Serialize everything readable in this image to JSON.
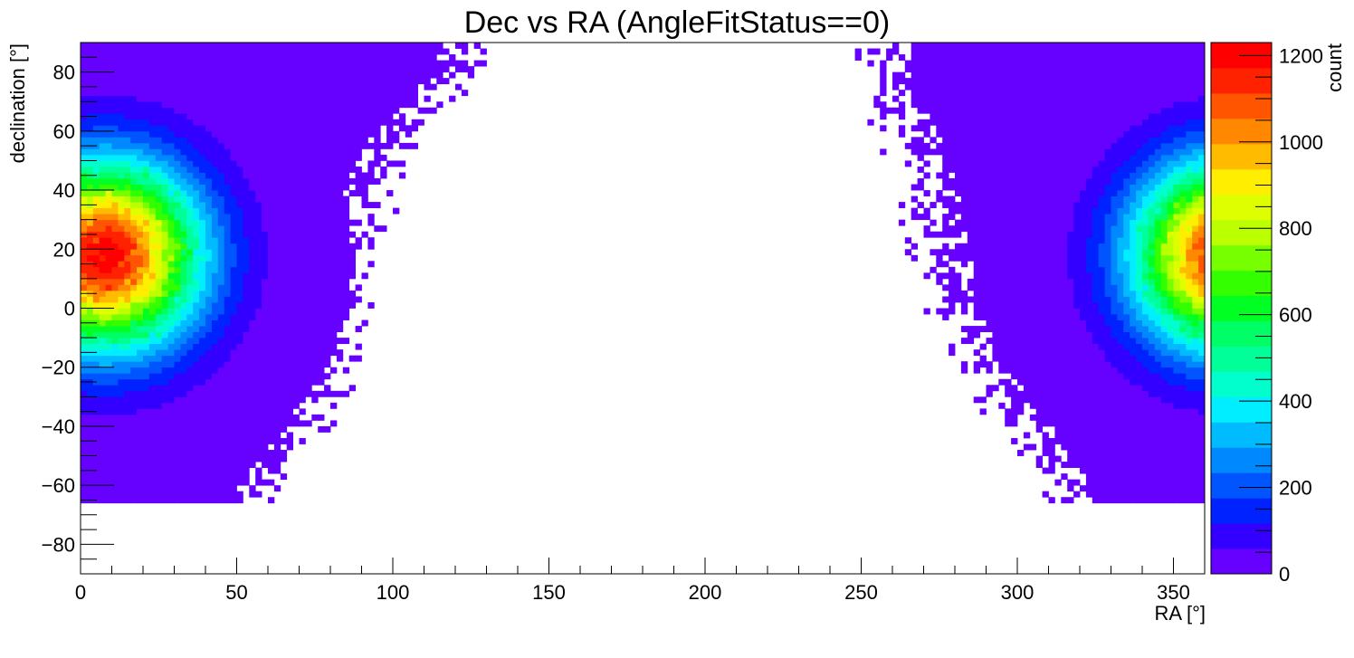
{
  "chart_data": {
    "type": "heatmap",
    "title": "Dec vs RA (AngleFitStatus==0)",
    "xlabel": "RA [°]",
    "ylabel": "declination [°]",
    "zlabel": "count",
    "xlim": [
      0,
      360
    ],
    "ylim": [
      -90,
      90
    ],
    "zlim": [
      0,
      1230
    ],
    "x_ticks": [
      0,
      50,
      100,
      150,
      200,
      250,
      300,
      350
    ],
    "x_tick_labels": [
      "0",
      "50",
      "100",
      "150",
      "200",
      "250",
      "300",
      "350"
    ],
    "y_ticks": [
      -80,
      -60,
      -40,
      -20,
      0,
      20,
      40,
      60,
      80
    ],
    "y_tick_labels": [
      "−80",
      "−60",
      "−40",
      "−20",
      "0",
      "20",
      "40",
      "60",
      "80"
    ],
    "z_ticks": [
      0,
      200,
      400,
      600,
      800,
      1000,
      1200
    ],
    "z_tick_labels": [
      "0",
      "200",
      "400",
      "600",
      "800",
      "1000",
      "1200"
    ],
    "grid": false,
    "palette": [
      "#6600ff",
      "#3300ff",
      "#0022ff",
      "#0055ff",
      "#0088ff",
      "#00bbff",
      "#00eeff",
      "#00ffcc",
      "#00ff99",
      "#00ff66",
      "#00ff22",
      "#33ff00",
      "#77ff00",
      "#bbff00",
      "#ddff00",
      "#ffee00",
      "#ffbb00",
      "#ff8800",
      "#ff5500",
      "#ff2200",
      "#ff0000"
    ],
    "bins": {
      "x_width": 2,
      "y_width": 2
    },
    "components": [
      {
        "ra_center": 8,
        "dec_center": 18,
        "ra_sigma": 21,
        "dec_sigma": 22,
        "peak": 1210
      },
      {
        "ra_center": 368,
        "dec_center": 18,
        "ra_sigma": 21,
        "dec_sigma": 22,
        "peak": 1210
      }
    ],
    "occupied_region": {
      "description_points_left_edge": [
        [
          -60,
          55
        ],
        [
          -40,
          70
        ],
        [
          -20,
          78
        ],
        [
          0,
          82
        ],
        [
          20,
          85
        ],
        [
          40,
          90
        ],
        [
          60,
          100
        ],
        [
          80,
          120
        ]
      ],
      "description_points_right_edge": [
        [
          -60,
          318
        ],
        [
          -40,
          305
        ],
        [
          -20,
          290
        ],
        [
          0,
          283
        ],
        [
          20,
          278
        ],
        [
          40,
          275
        ],
        [
          60,
          268
        ],
        [
          80,
          260
        ]
      ]
    }
  }
}
